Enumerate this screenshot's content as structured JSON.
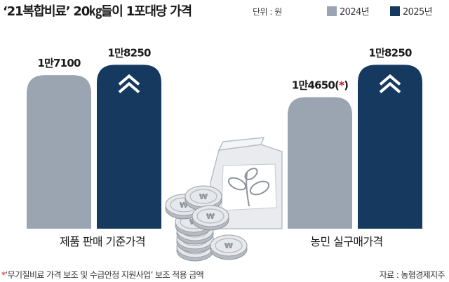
{
  "header": {
    "title": "‘21복합비료’ 20㎏들이 1포대당 가격",
    "unit": "단위 : 원"
  },
  "legend": [
    {
      "label": "2024년",
      "color": "#9ba4b1"
    },
    {
      "label": "2025년",
      "color": "#163a5f"
    }
  ],
  "chart_data": {
    "type": "bar",
    "title": "‘21복합비료’ 20㎏들이 1포대당 가격",
    "unit": "단위 : 원",
    "categories": [
      "제품 판매 기준가격",
      "농민 실구매가격"
    ],
    "series": [
      {
        "name": "2024년",
        "values": [
          17100,
          14650
        ],
        "labels": [
          "1만7100",
          "1만4650(*)"
        ],
        "color": "#9ba4b1"
      },
      {
        "name": "2025년",
        "values": [
          18250,
          18250
        ],
        "labels": [
          "1만8250",
          "1만8250"
        ],
        "color": "#163a5f"
      }
    ],
    "increase_marks": [
      "double-chevron-up-icon",
      "double-chevron-up-icon"
    ],
    "grid": false,
    "legend_position": "top-right"
  },
  "footer": {
    "star": "*",
    "note": "‘무기질비료 가격 보조 및 수급안정 지원사업’ 보조 적용 금액",
    "source": "자료 : 농협경제지주"
  }
}
